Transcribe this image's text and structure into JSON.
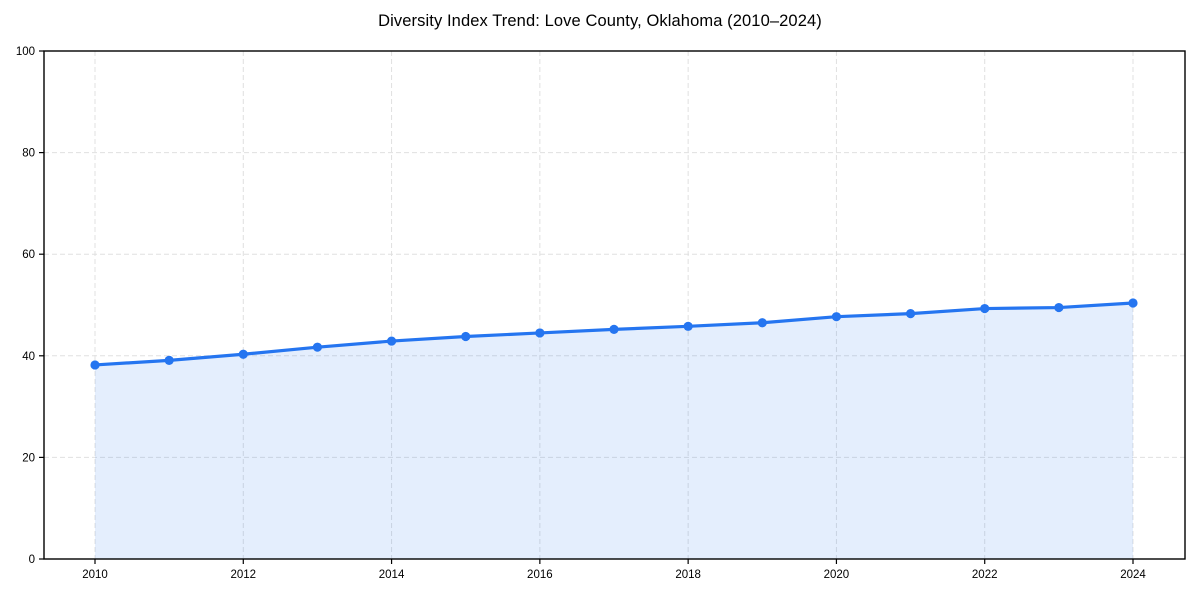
{
  "chart_data": {
    "type": "line",
    "title": "Diversity Index Trend: Love County, Oklahoma (2010–2024)",
    "x": [
      2010,
      2011,
      2012,
      2013,
      2014,
      2015,
      2016,
      2017,
      2018,
      2019,
      2020,
      2021,
      2022,
      2023,
      2024
    ],
    "series": [
      {
        "name": "Diversity Index",
        "values": [
          38.2,
          39.1,
          40.3,
          41.7,
          42.9,
          43.8,
          44.5,
          45.2,
          45.8,
          46.5,
          47.7,
          48.3,
          49.3,
          49.5,
          50.4
        ]
      }
    ],
    "xlabel": "",
    "ylabel": "",
    "xticks": [
      2010,
      2012,
      2014,
      2016,
      2018,
      2020,
      2022,
      2024
    ],
    "yticks": [
      0,
      20,
      40,
      60,
      80,
      100
    ],
    "ylim": [
      0,
      100
    ],
    "grid": true,
    "grid_style": "dashed",
    "legend": false,
    "area_fill": true,
    "markers": true,
    "colors": {
      "line": "#2575f0",
      "marker": "#2575f0",
      "fill": "#2575f0",
      "fill_opacity": 0.12,
      "grid": "#e0e0e0",
      "spine": "#000000",
      "tick_text": "#000000",
      "background": "#ffffff"
    }
  }
}
